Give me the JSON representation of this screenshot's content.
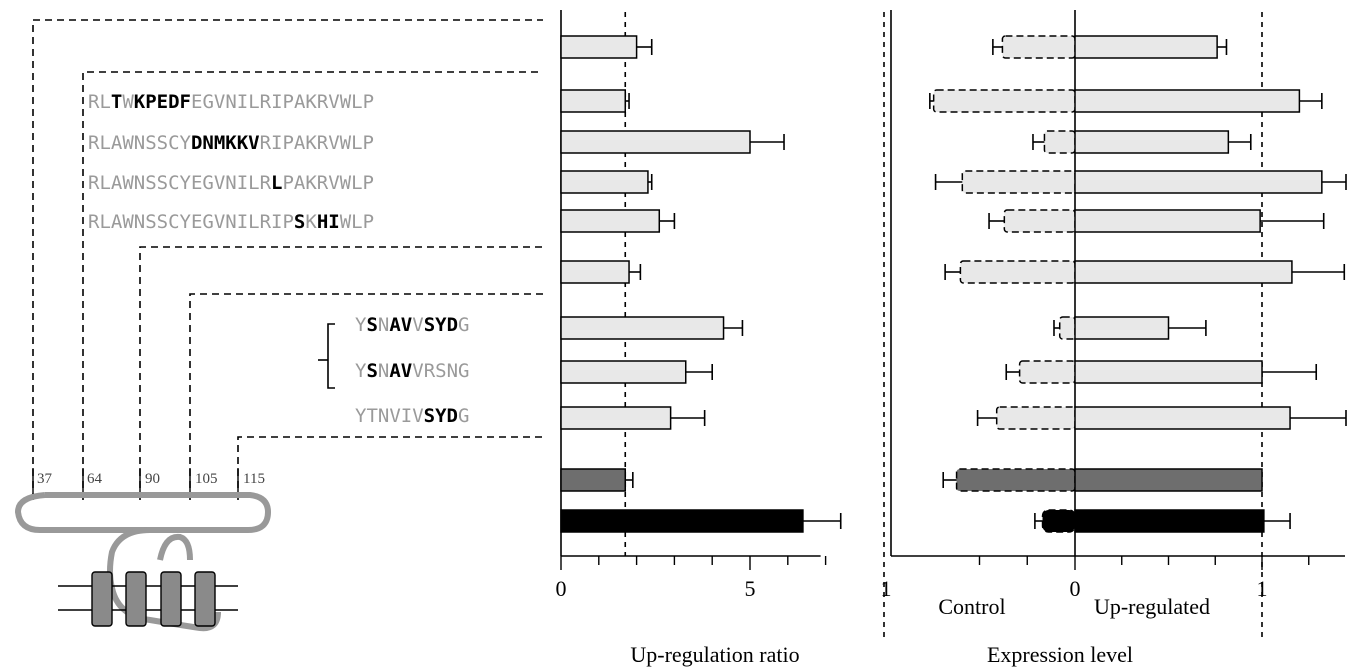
{
  "colors": {
    "bar_light": "#e8e8e8",
    "bar_dark": "#6e6e6e",
    "bar_black": "#000000",
    "seq_dim": "#9a9a9a",
    "seq_bold": "#000000",
    "protein": "#999999",
    "helix_fill": "#8a8a8a",
    "line": "#000000"
  },
  "domain_positions": [
    "37",
    "64",
    "90",
    "105",
    "115"
  ],
  "sequences_a": [
    {
      "segments": [
        {
          "t": "RL",
          "b": false
        },
        {
          "t": "T",
          "b": true
        },
        {
          "t": "W",
          "b": false
        },
        {
          "t": "KPEDF",
          "b": true
        },
        {
          "t": "EGVNILRIPAKRVWLP",
          "b": false
        }
      ]
    },
    {
      "segments": [
        {
          "t": "RLAWNSSCY",
          "b": false
        },
        {
          "t": "DNMKKV",
          "b": true
        },
        {
          "t": "RIPAKRVWLP",
          "b": false
        }
      ]
    },
    {
      "segments": [
        {
          "t": "RLAWNSSCYEGVNILR",
          "b": false
        },
        {
          "t": "L",
          "b": true
        },
        {
          "t": "PAKRVWLP",
          "b": false
        }
      ]
    },
    {
      "segments": [
        {
          "t": "RLAWNSSCYEGVNILRIP",
          "b": false
        },
        {
          "t": "S",
          "b": true
        },
        {
          "t": "K",
          "b": false
        },
        {
          "t": "HI",
          "b": true
        },
        {
          "t": "WLP",
          "b": false
        }
      ]
    }
  ],
  "sequences_b": [
    {
      "segments": [
        {
          "t": "Y",
          "b": false
        },
        {
          "t": "S",
          "b": true
        },
        {
          "t": "N",
          "b": false
        },
        {
          "t": "AV",
          "b": true
        },
        {
          "t": "V",
          "b": false
        },
        {
          "t": "SYD",
          "b": true
        },
        {
          "t": "G",
          "b": false
        }
      ]
    },
    {
      "segments": [
        {
          "t": "Y",
          "b": false
        },
        {
          "t": "S",
          "b": true
        },
        {
          "t": "N",
          "b": false
        },
        {
          "t": "AV",
          "b": true
        },
        {
          "t": "VRSNG",
          "b": false
        }
      ]
    },
    {
      "segments": [
        {
          "t": "YTNVIV",
          "b": false
        },
        {
          "t": "SYD",
          "b": true
        },
        {
          "t": "G",
          "b": false
        }
      ]
    }
  ],
  "chart_data": [
    {
      "type": "bar",
      "orientation": "horizontal",
      "xlabel": "Up-regulation ratio",
      "xlim": [
        0,
        7
      ],
      "xticks": [
        "0",
        "5"
      ],
      "reference_line": 1.7,
      "values": [
        2.0,
        1.7,
        5.0,
        2.3,
        2.6,
        1.8,
        4.3,
        3.3,
        2.9,
        1.7,
        6.4
      ],
      "errors": [
        0.4,
        0.1,
        0.9,
        0.1,
        0.4,
        0.3,
        0.5,
        0.7,
        0.9,
        0.2,
        1.0
      ],
      "bar_styles": [
        "light",
        "light",
        "light",
        "light",
        "light",
        "light",
        "light",
        "light",
        "light",
        "dark",
        "black"
      ]
    },
    {
      "type": "bar",
      "orientation": "horizontal",
      "xlabel": "Expression level",
      "xlim": [
        -1,
        1.4
      ],
      "xticks": [
        "1",
        "0",
        "1"
      ],
      "category_labels": [
        "Control",
        "Up-regulated"
      ],
      "reference_lines": [
        -1,
        1
      ],
      "control_values": [
        0.38,
        0.74,
        0.16,
        0.59,
        0.37,
        0.6,
        0.08,
        0.29,
        0.41,
        0.62,
        0.17
      ],
      "control_errors": [
        0.05,
        0.02,
        0.06,
        0.14,
        0.08,
        0.08,
        0.03,
        0.07,
        0.1,
        0.07,
        0.04
      ],
      "upreg_values": [
        0.76,
        1.2,
        0.82,
        1.32,
        0.99,
        1.16,
        0.5,
        1.0,
        1.15,
        1.0,
        1.01
      ],
      "upreg_errors": [
        0.05,
        0.12,
        0.12,
        0.13,
        0.34,
        0.28,
        0.2,
        0.29,
        0.32,
        0.0,
        0.14
      ],
      "bar_styles": [
        "light",
        "light",
        "light",
        "light",
        "light",
        "light",
        "light",
        "light",
        "light",
        "dark",
        "black"
      ]
    }
  ]
}
